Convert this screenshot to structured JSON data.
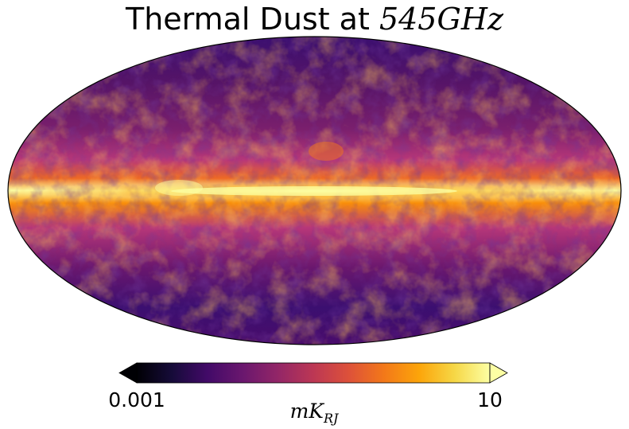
{
  "title": {
    "text": "Thermal Dust at ",
    "math": "545GHz"
  },
  "map": {
    "projection": "mollweide",
    "colormap": "inferno",
    "scale": "log",
    "colors": {
      "plane_peak": "#fcffa4",
      "bright": "#f98e09",
      "mid": "#c73e4c",
      "low": "#6a176e",
      "floor": "#1b0c41",
      "outline": "#000000"
    }
  },
  "colorbar": {
    "orientation": "horizontal",
    "extend": "both",
    "min": 0.001,
    "max": 10,
    "tick_labels": [
      "0.001",
      "10"
    ],
    "label_main": "mK",
    "label_sub": "RJ"
  }
}
